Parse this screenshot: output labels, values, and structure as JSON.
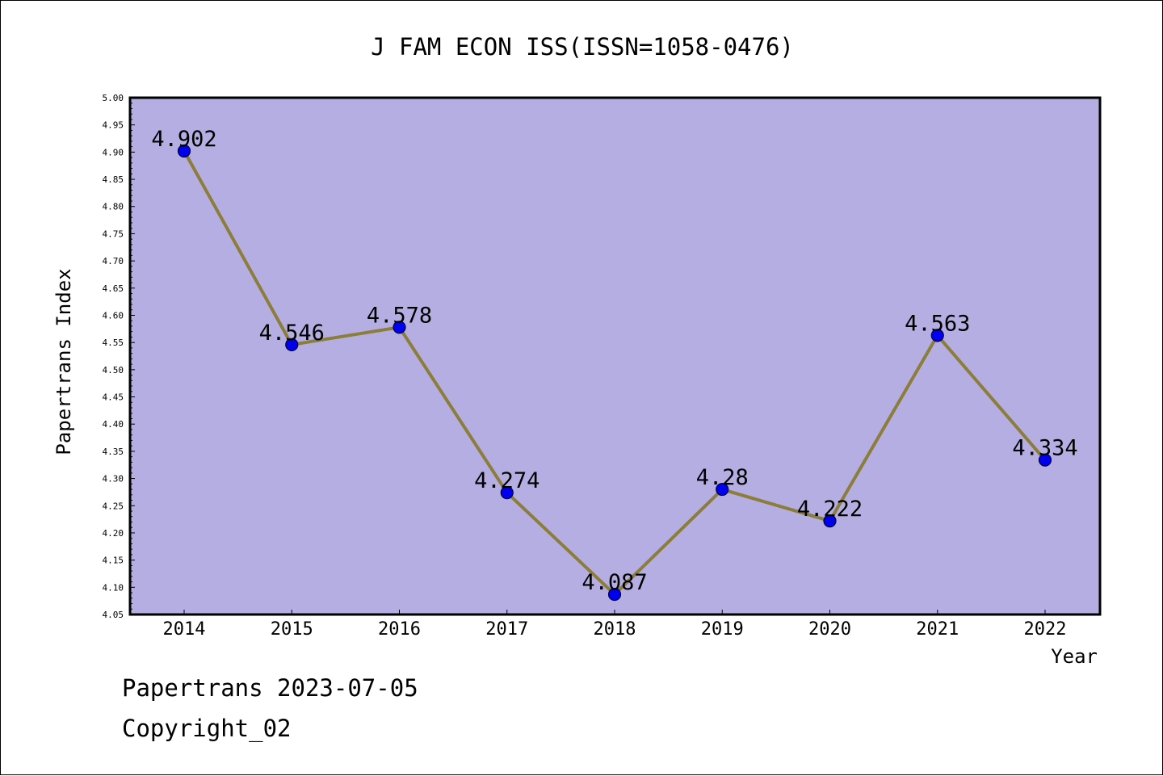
{
  "chart_data": {
    "type": "line",
    "title": "J FAM ECON ISS(ISSN=1058-0476)",
    "xlabel": "Year",
    "ylabel": "Papertrans Index",
    "categories": [
      "2014",
      "2015",
      "2016",
      "2017",
      "2018",
      "2019",
      "2020",
      "2021",
      "2022"
    ],
    "values": [
      4.902,
      4.546,
      4.578,
      4.274,
      4.087,
      4.28,
      4.222,
      4.563,
      4.334
    ],
    "data_labels": [
      "4.902",
      "4.546",
      "4.578",
      "4.274",
      "4.087",
      "4.28",
      "4.222",
      "4.563",
      "4.334"
    ],
    "ylim": [
      4.05,
      5.0
    ],
    "y_ticks": [
      "4.05",
      "4.10",
      "4.15",
      "4.20",
      "4.25",
      "4.30",
      "4.35",
      "4.40",
      "4.45",
      "4.50",
      "4.55",
      "4.60",
      "4.65",
      "4.70",
      "4.75",
      "4.80",
      "4.85",
      "4.90",
      "4.95",
      "5.00"
    ],
    "grid": false,
    "legend": "none",
    "colors": {
      "plot_background": "#b5aee2",
      "line": "#8b7d3a",
      "marker": "#0000ee",
      "marker_edge": "#00003a",
      "axis": "#000000"
    }
  },
  "footer": {
    "line1": "Papertrans 2023-07-05",
    "line2": "Copyright_02"
  }
}
